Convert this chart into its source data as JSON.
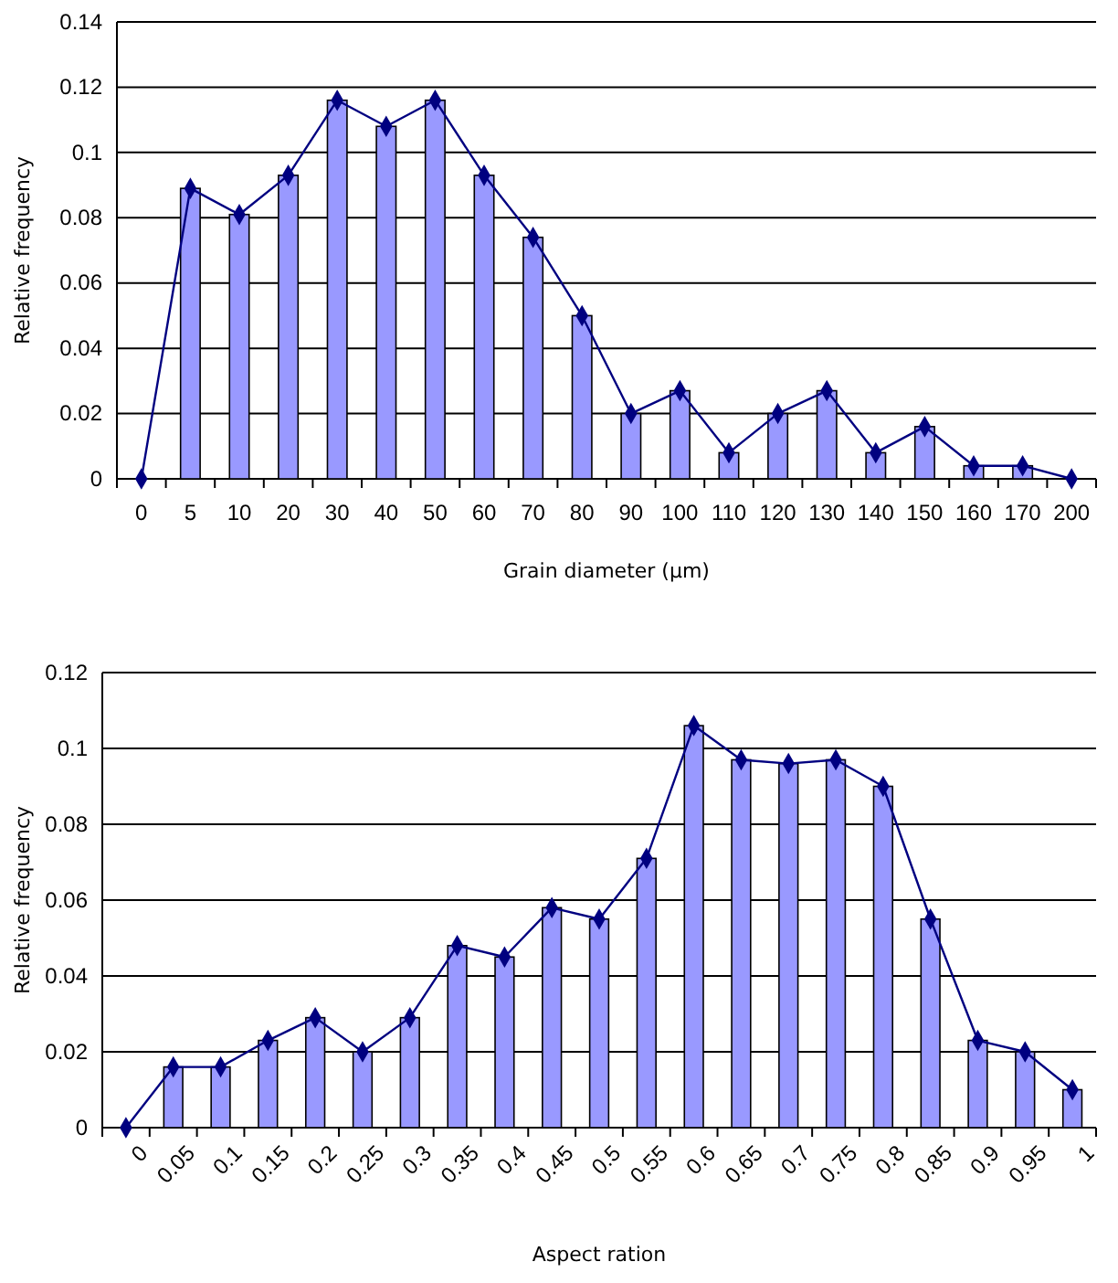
{
  "chart_data": [
    {
      "type": "bar",
      "ylabel": "Relative frequency",
      "xlabel": "Grain diameter (μm)",
      "categories": [
        "0",
        "5",
        "10",
        "20",
        "30",
        "40",
        "50",
        "60",
        "70",
        "80",
        "90",
        "100",
        "110",
        "120",
        "130",
        "140",
        "150",
        "160",
        "170",
        "200"
      ],
      "ylim": [
        0,
        0.14
      ],
      "yticks": [
        0,
        0.02,
        0.04,
        0.06,
        0.08,
        0.1,
        0.12,
        0.14
      ],
      "grid": "y",
      "series": [
        {
          "color": "#9999ff",
          "values": [
            0,
            0.089,
            0.081,
            0.093,
            0.116,
            0.108,
            0.116,
            0.093,
            0.074,
            0.05,
            0.02,
            0.027,
            0.008,
            0.02,
            0.027,
            0.008,
            0.016,
            0.004,
            0.004,
            0
          ]
        },
        {
          "type": "line",
          "color": "#000080",
          "marker": "diamond",
          "values": [
            0,
            0.089,
            0.081,
            0.093,
            0.116,
            0.108,
            0.116,
            0.093,
            0.074,
            0.05,
            0.02,
            0.027,
            0.008,
            0.02,
            0.027,
            0.008,
            0.016,
            0.004,
            0.004,
            0
          ]
        }
      ]
    },
    {
      "type": "bar",
      "ylabel": "Relative frequency",
      "xlabel": "Aspect ration",
      "categories": [
        "0",
        "0.05",
        "0.1",
        "0.15",
        "0.2",
        "0.25",
        "0.3",
        "0.35",
        "0.4",
        "0.45",
        "0.5",
        "0.55",
        "0.6",
        "0.65",
        "0.7",
        "0.75",
        "0.8",
        "0.85",
        "0.9",
        "0.95",
        "1"
      ],
      "ylim": [
        0,
        0.12
      ],
      "yticks": [
        0,
        0.02,
        0.04,
        0.06,
        0.08,
        0.1,
        0.12
      ],
      "grid": "y",
      "series": [
        {
          "color": "#9999ff",
          "values": [
            0,
            0.016,
            0.016,
            0.023,
            0.029,
            0.02,
            0.029,
            0.048,
            0.045,
            0.058,
            0.055,
            0.071,
            0.106,
            0.097,
            0.096,
            0.097,
            0.09,
            0.055,
            0.023,
            0.02,
            0.01
          ]
        },
        {
          "type": "line",
          "color": "#000080",
          "marker": "diamond",
          "values": [
            0,
            0.016,
            0.016,
            0.023,
            0.029,
            0.02,
            0.029,
            0.048,
            0.045,
            0.058,
            0.055,
            0.071,
            0.106,
            0.097,
            0.096,
            0.097,
            0.09,
            0.055,
            0.023,
            0.02,
            0.01
          ]
        }
      ]
    }
  ]
}
